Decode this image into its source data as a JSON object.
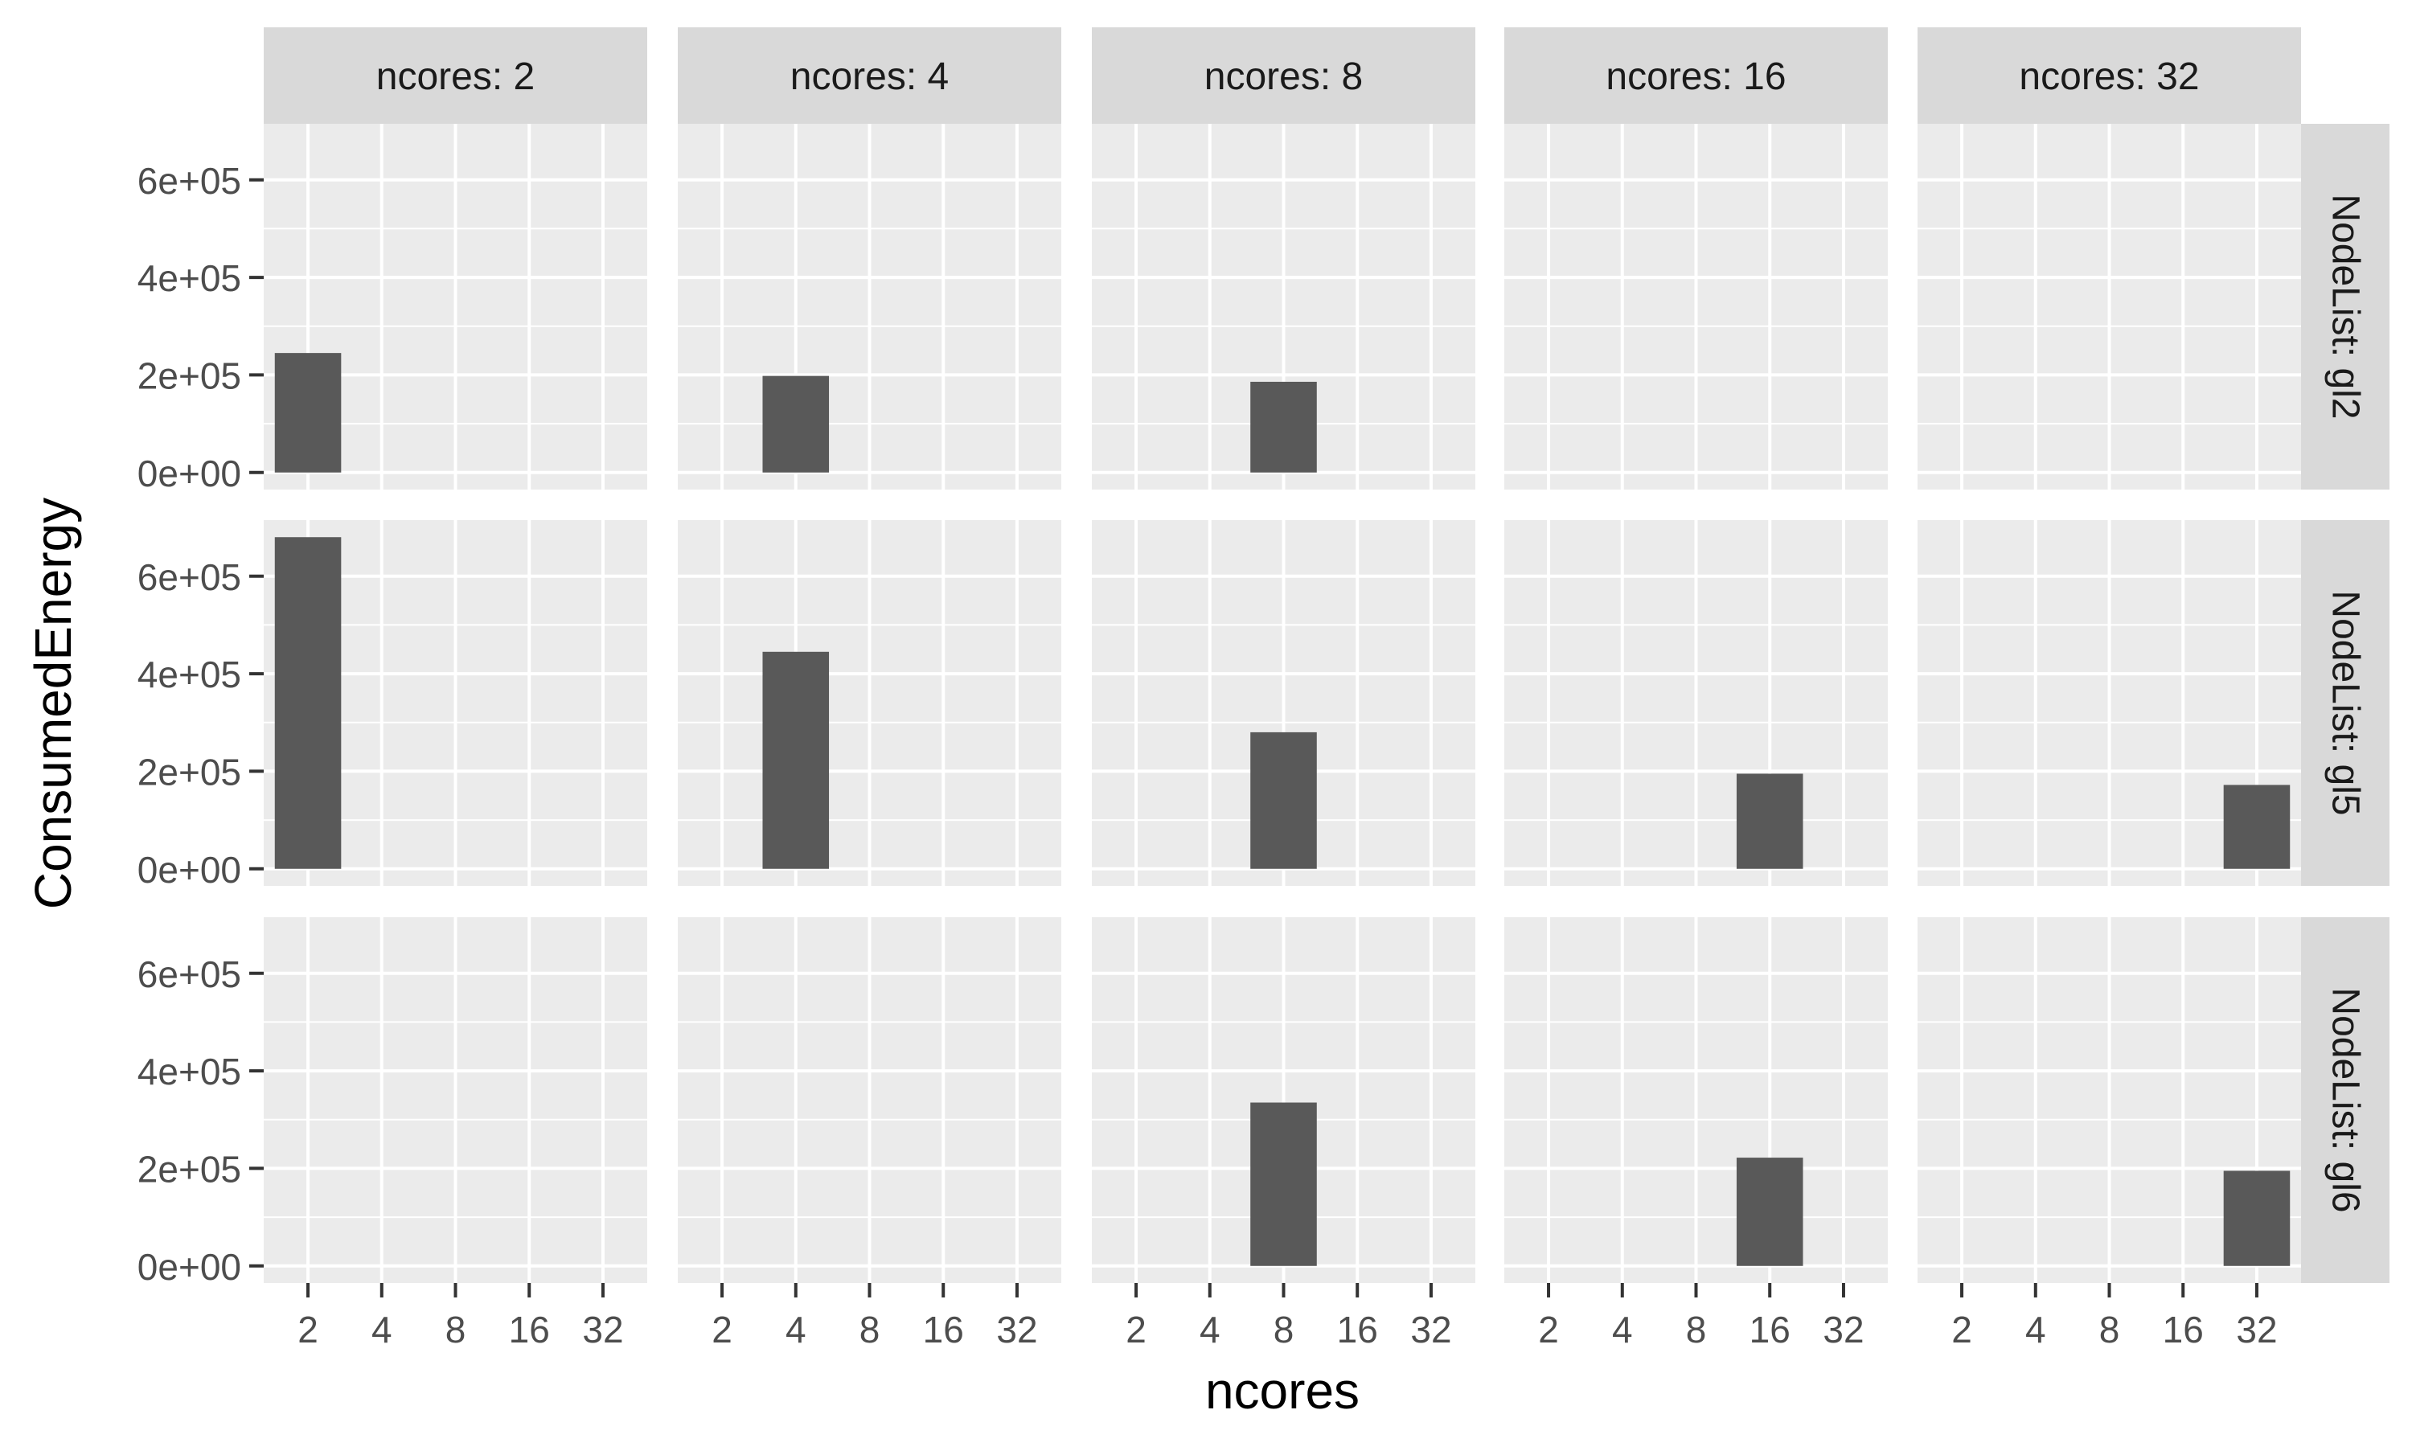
{
  "chart_data": {
    "type": "bar",
    "xlabel": "ncores",
    "ylabel": "ConsumedEnergy",
    "x_ticks": [
      "2",
      "4",
      "8",
      "16",
      "32"
    ],
    "y_ticks": [
      {
        "value": 0,
        "label": "0e+00"
      },
      {
        "value": 200000,
        "label": "2e+05"
      },
      {
        "value": 400000,
        "label": "4e+05"
      },
      {
        "value": 600000,
        "label": "6e+05"
      }
    ],
    "ylim": [
      -35000,
      715000
    ],
    "grid": true,
    "facet_cols": [
      {
        "label": "ncores: 2",
        "ncores": "2"
      },
      {
        "label": "ncores: 4",
        "ncores": "4"
      },
      {
        "label": "ncores: 8",
        "ncores": "8"
      },
      {
        "label": "ncores: 16",
        "ncores": "16"
      },
      {
        "label": "ncores: 32",
        "ncores": "32"
      }
    ],
    "facet_rows": [
      {
        "label": "NodeList: gl2",
        "values": {
          "2": 245000,
          "4": 198000,
          "8": 186000
        }
      },
      {
        "label": "NodeList: gl5",
        "values": {
          "2": 680000,
          "4": 445000,
          "8": 280000,
          "16": 195000,
          "32": 172000
        }
      },
      {
        "label": "NodeList: gl6",
        "values": {
          "8": 335000,
          "16": 222000,
          "32": 195000
        }
      }
    ],
    "colors": {
      "bar": "#595959",
      "panel_bg": "#ebebeb",
      "grid_major": "#ffffff",
      "strip_bg": "#d9d9d9",
      "strip_text": "#1a1a1a",
      "tick_text": "#4d4d4d",
      "tick_mark": "#333333",
      "axis_title": "#000000"
    }
  }
}
